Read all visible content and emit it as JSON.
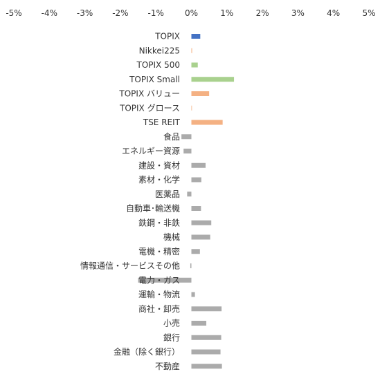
{
  "chart_data": {
    "type": "bar",
    "orientation": "horizontal",
    "title": "",
    "xlabel": "",
    "ylabel": "",
    "xlim": [
      -5,
      5
    ],
    "x_ticks": [
      "-5%",
      "-4%",
      "-3%",
      "-2%",
      "-1%",
      "0%",
      "1%",
      "2%",
      "3%",
      "4%",
      "5%"
    ],
    "axis_position": "top",
    "grid": false,
    "legend": "none",
    "unit": "%",
    "categories": [
      "TOPIX",
      "Nikkei225",
      "TOPIX 500",
      "TOPIX Small",
      "TOPIX バリュー",
      "TOPIX グロース",
      "TSE REIT",
      "食品",
      "エネルギー資源",
      "建設・資材",
      "素材・化学",
      "医薬品",
      "自動車･輸送機",
      "鉄鋼・非鉄",
      "機械",
      "電機・精密",
      "情報通信・サービスその他",
      "電力・ガス",
      "運輸・物流",
      "商社・卸売",
      "小売",
      "銀行",
      "金融（除く銀行）",
      "不動産"
    ],
    "values": [
      0.25,
      0.02,
      0.18,
      1.2,
      0.5,
      0.01,
      0.88,
      -0.28,
      -0.22,
      0.4,
      0.28,
      -0.12,
      0.27,
      0.56,
      0.53,
      0.24,
      -0.03,
      -1.5,
      0.1,
      0.85,
      0.42,
      0.84,
      0.82,
      0.86
    ],
    "bar_colors": [
      "#4472C4",
      "#F4B183",
      "#A9D18E",
      "#A9D18E",
      "#F4B183",
      "#F4B183",
      "#F4B183",
      "#ABABAB",
      "#ABABAB",
      "#ABABAB",
      "#ABABAB",
      "#ABABAB",
      "#ABABAB",
      "#ABABAB",
      "#ABABAB",
      "#ABABAB",
      "#ABABAB",
      "#ABABAB",
      "#ABABAB",
      "#ABABAB",
      "#ABABAB",
      "#ABABAB",
      "#ABABAB",
      "#ABABAB"
    ]
  }
}
